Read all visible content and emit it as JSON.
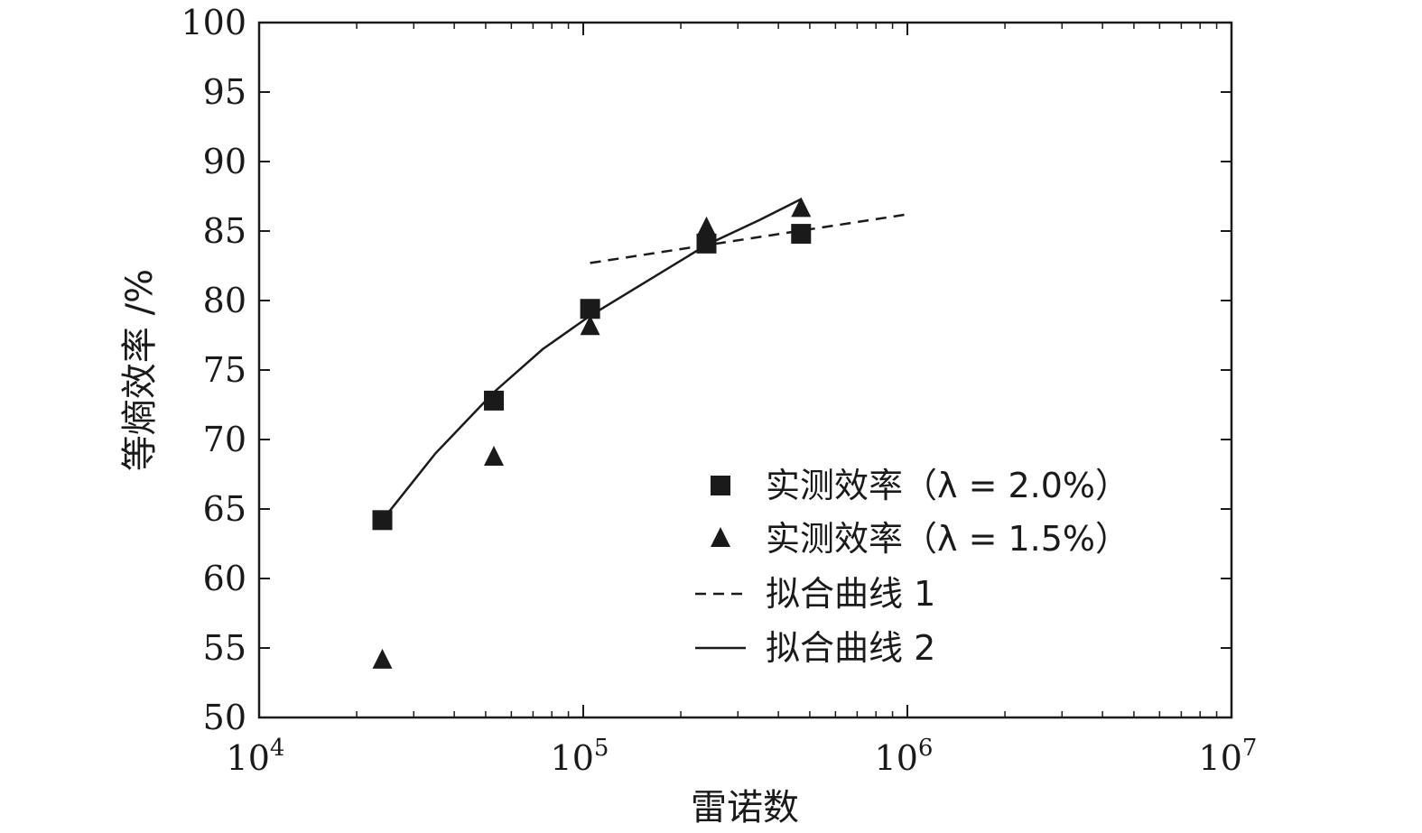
{
  "chart_data": {
    "type": "scatter",
    "title": "",
    "xlabel": "雷诺数",
    "ylabel": "等熵效率 /%",
    "x_scale": "log",
    "xlim": [
      10000,
      10000000
    ],
    "ylim": [
      50,
      100
    ],
    "x_ticks": [
      {
        "value": 10000,
        "base": "10",
        "exp": "4"
      },
      {
        "value": 100000,
        "base": "10",
        "exp": "5"
      },
      {
        "value": 1000000,
        "base": "10",
        "exp": "6"
      },
      {
        "value": 10000000,
        "base": "10",
        "exp": "7"
      }
    ],
    "y_ticks": [
      50,
      55,
      60,
      65,
      70,
      75,
      80,
      85,
      90,
      95,
      100
    ],
    "grid": false,
    "legend_position": "bottom-right",
    "series": [
      {
        "name": "实测效率（λ = 2.0%）",
        "kind": "marker",
        "marker": "square",
        "x": [
          24000,
          53000,
          105000,
          240000,
          470000
        ],
        "y": [
          64.2,
          72.8,
          79.4,
          84.1,
          84.8
        ]
      },
      {
        "name": "实测效率（λ = 1.5%）",
        "kind": "marker",
        "marker": "triangle",
        "x": [
          24000,
          53000,
          105000,
          240000,
          470000
        ],
        "y": [
          54.1,
          68.7,
          78.1,
          85.2,
          86.6
        ]
      },
      {
        "name": "拟合曲线 1",
        "kind": "line",
        "dash": true,
        "x": [
          105000,
          1000000
        ],
        "y": [
          82.7,
          86.2
        ]
      },
      {
        "name": "拟合曲线 2",
        "kind": "line",
        "dash": false,
        "x": [
          24000,
          35000,
          53000,
          75000,
          105000,
          150000,
          240000,
          350000,
          470000
        ],
        "y": [
          64.2,
          69.0,
          73.4,
          76.5,
          78.9,
          81.1,
          84.0,
          85.8,
          87.3
        ]
      }
    ],
    "colors": {
      "ink": "#1a1a1a",
      "background": "#ffffff"
    }
  }
}
